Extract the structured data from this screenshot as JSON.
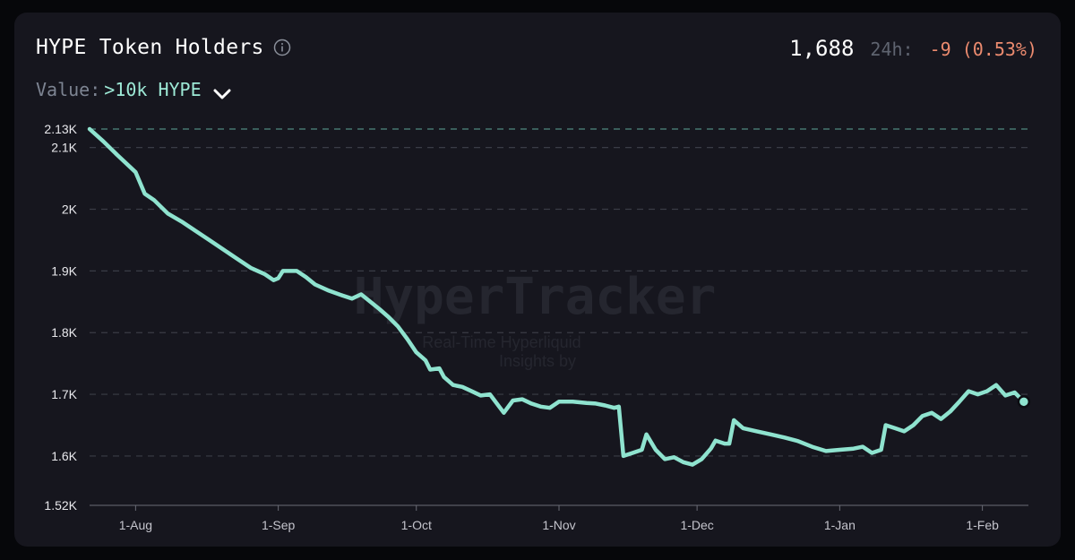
{
  "header": {
    "title": "HYPE Token Holders",
    "value_label": "Value:",
    "value_select": ">10k HYPE",
    "holders": "1,688",
    "h24_label": "24h:",
    "change": "-9 (0.53%)"
  },
  "watermark": {
    "brand": "HyperTracker",
    "line1": "Real-Time Hyperliquid",
    "line2": "Insights by"
  },
  "colors": {
    "line": "#8fe3cf",
    "accent": "#9de9d6",
    "negative": "#ec8b6f",
    "card": "#16161e"
  },
  "icons": {
    "info": "info-icon",
    "dropdown": "chevron-down-icon"
  },
  "chart_data": {
    "type": "line",
    "title": "HYPE Token Holders",
    "xlabel": "",
    "ylabel": "",
    "x_axis_type": "date",
    "ylim": [
      1520,
      2130
    ],
    "y_ticks": [
      {
        "value": 2130,
        "label": "2.13K"
      },
      {
        "value": 2100,
        "label": "2.1K"
      },
      {
        "value": 2000,
        "label": "2K"
      },
      {
        "value": 1900,
        "label": "1.9K"
      },
      {
        "value": 1800,
        "label": "1.8K"
      },
      {
        "value": 1700,
        "label": "1.7K"
      },
      {
        "value": 1600,
        "label": "1.6K"
      },
      {
        "value": 1520,
        "label": "1.52K"
      }
    ],
    "x_ticks": [
      {
        "date": "2025-08-01",
        "label": "1-Aug"
      },
      {
        "date": "2025-09-01",
        "label": "1-Sep"
      },
      {
        "date": "2025-10-01",
        "label": "1-Oct"
      },
      {
        "date": "2025-11-01",
        "label": "1-Nov"
      },
      {
        "date": "2025-12-01",
        "label": "1-Dec"
      },
      {
        "date": "2026-01-01",
        "label": "1-Jan"
      },
      {
        "date": "2026-02-01",
        "label": "1-Feb"
      }
    ],
    "grid": true,
    "series": [
      {
        "values": [
          [
            "2025-07-22",
            2130
          ],
          [
            "2025-07-25",
            2110
          ],
          [
            "2025-07-28",
            2088
          ],
          [
            "2025-08-01",
            2060
          ],
          [
            "2025-08-03",
            2025
          ],
          [
            "2025-08-05",
            2015
          ],
          [
            "2025-08-08",
            1993
          ],
          [
            "2025-08-11",
            1980
          ],
          [
            "2025-08-14",
            1965
          ],
          [
            "2025-08-17",
            1950
          ],
          [
            "2025-08-20",
            1935
          ],
          [
            "2025-08-23",
            1920
          ],
          [
            "2025-08-26",
            1905
          ],
          [
            "2025-08-29",
            1895
          ],
          [
            "2025-08-31",
            1885
          ],
          [
            "2025-09-01",
            1888
          ],
          [
            "2025-09-02",
            1900
          ],
          [
            "2025-09-05",
            1900
          ],
          [
            "2025-09-07",
            1890
          ],
          [
            "2025-09-09",
            1878
          ],
          [
            "2025-09-12",
            1868
          ],
          [
            "2025-09-15",
            1860
          ],
          [
            "2025-09-17",
            1855
          ],
          [
            "2025-09-19",
            1862
          ],
          [
            "2025-09-21",
            1850
          ],
          [
            "2025-09-23",
            1838
          ],
          [
            "2025-09-25",
            1825
          ],
          [
            "2025-09-27",
            1810
          ],
          [
            "2025-09-29",
            1790
          ],
          [
            "2025-10-01",
            1768
          ],
          [
            "2025-10-03",
            1755
          ],
          [
            "2025-10-04",
            1740
          ],
          [
            "2025-10-06",
            1742
          ],
          [
            "2025-10-07",
            1728
          ],
          [
            "2025-10-09",
            1715
          ],
          [
            "2025-10-11",
            1712
          ],
          [
            "2025-10-13",
            1705
          ],
          [
            "2025-10-15",
            1698
          ],
          [
            "2025-10-17",
            1700
          ],
          [
            "2025-10-19",
            1680
          ],
          [
            "2025-10-20",
            1670
          ],
          [
            "2025-10-22",
            1690
          ],
          [
            "2025-10-24",
            1692
          ],
          [
            "2025-10-26",
            1685
          ],
          [
            "2025-10-28",
            1680
          ],
          [
            "2025-10-30",
            1678
          ],
          [
            "2025-11-01",
            1688
          ],
          [
            "2025-11-04",
            1688
          ],
          [
            "2025-11-07",
            1686
          ],
          [
            "2025-11-09",
            1685
          ],
          [
            "2025-11-11",
            1682
          ],
          [
            "2025-11-13",
            1678
          ],
          [
            "2025-11-14",
            1680
          ],
          [
            "2025-11-15",
            1600
          ],
          [
            "2025-11-17",
            1605
          ],
          [
            "2025-11-19",
            1610
          ],
          [
            "2025-11-20",
            1635
          ],
          [
            "2025-11-22",
            1610
          ],
          [
            "2025-11-24",
            1595
          ],
          [
            "2025-11-26",
            1598
          ],
          [
            "2025-11-28",
            1590
          ],
          [
            "2025-11-30",
            1586
          ],
          [
            "2025-12-02",
            1595
          ],
          [
            "2025-12-04",
            1612
          ],
          [
            "2025-12-05",
            1625
          ],
          [
            "2025-12-07",
            1620
          ],
          [
            "2025-12-08",
            1620
          ],
          [
            "2025-12-09",
            1658
          ],
          [
            "2025-12-11",
            1645
          ],
          [
            "2025-12-14",
            1640
          ],
          [
            "2025-12-17",
            1635
          ],
          [
            "2025-12-20",
            1630
          ],
          [
            "2025-12-23",
            1624
          ],
          [
            "2025-12-26",
            1615
          ],
          [
            "2025-12-29",
            1608
          ],
          [
            "2026-01-01",
            1610
          ],
          [
            "2026-01-04",
            1612
          ],
          [
            "2026-01-06",
            1615
          ],
          [
            "2026-01-08",
            1605
          ],
          [
            "2026-01-10",
            1610
          ],
          [
            "2026-01-11",
            1650
          ],
          [
            "2026-01-13",
            1645
          ],
          [
            "2026-01-15",
            1640
          ],
          [
            "2026-01-17",
            1650
          ],
          [
            "2026-01-19",
            1665
          ],
          [
            "2026-01-21",
            1670
          ],
          [
            "2026-01-23",
            1660
          ],
          [
            "2026-01-25",
            1672
          ],
          [
            "2026-01-27",
            1688
          ],
          [
            "2026-01-29",
            1705
          ],
          [
            "2026-01-31",
            1700
          ],
          [
            "2026-02-02",
            1705
          ],
          [
            "2026-02-04",
            1715
          ],
          [
            "2026-02-06",
            1698
          ],
          [
            "2026-02-08",
            1703
          ],
          [
            "2026-02-10",
            1688
          ]
        ]
      }
    ]
  }
}
